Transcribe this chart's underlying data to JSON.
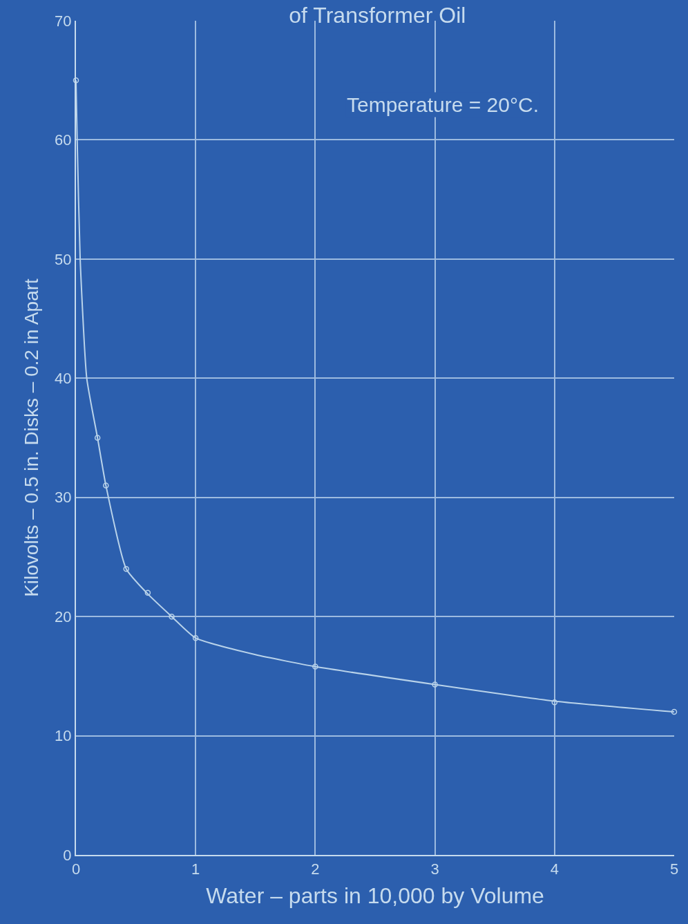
{
  "chart_data": {
    "type": "line",
    "title": "of Transformer Oil",
    "subtitle": "Temperature = 20°C.",
    "xlabel": "Water – parts in 10,000 by Volume",
    "ylabel": "Kilovolts – 0.5 in. Disks – 0.2 in Apart",
    "series": [
      {
        "color": "#b9d3ea",
        "marker": "none",
        "x": [
          0,
          0.01,
          0.035,
          0.09,
          0.18,
          0.25,
          0.42,
          0.6,
          0.8,
          1,
          1.5,
          2,
          3,
          4,
          5
        ],
        "values": [
          65,
          60,
          50,
          40,
          35,
          31,
          24,
          21.9,
          20,
          18.2,
          16.8,
          15.8,
          14.3,
          12.9,
          12
        ]
      },
      {
        "type": "scatter",
        "color": "#b9d3ea",
        "marker": "circle",
        "x": [
          0,
          0.18,
          0.25,
          0.42,
          0.6,
          0.8,
          1,
          2,
          3,
          4,
          5
        ],
        "values": [
          65,
          35,
          31,
          24,
          22,
          20,
          18.2,
          15.8,
          14.3,
          12.8,
          12
        ]
      }
    ],
    "xlim": [
      0,
      5
    ],
    "xticks": [
      0,
      1,
      2,
      3,
      4,
      5
    ],
    "ylim": [
      0,
      70
    ],
    "yticks": [
      0,
      10,
      20,
      30,
      40,
      50,
      60,
      70
    ],
    "grid": true
  }
}
